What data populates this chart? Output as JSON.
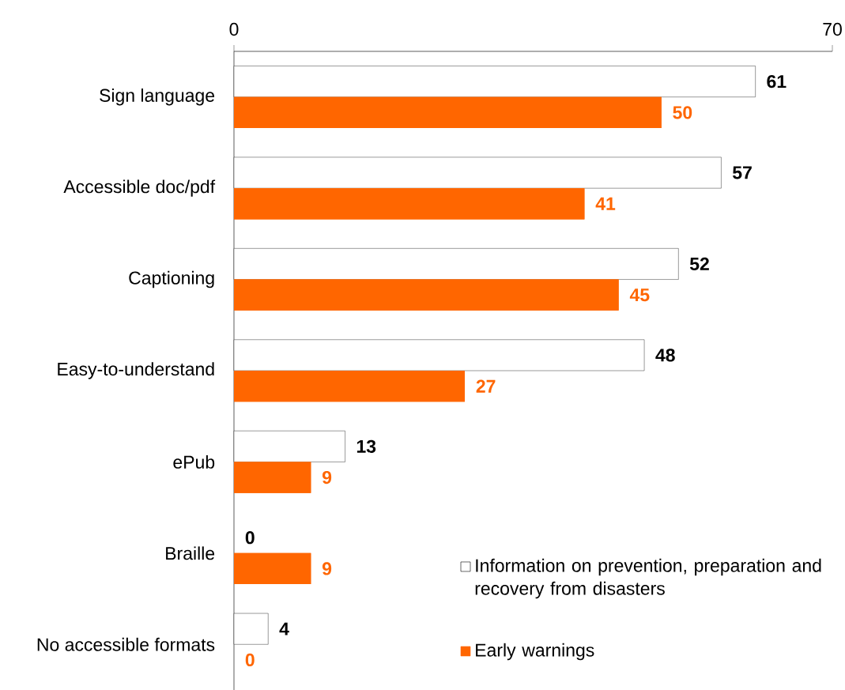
{
  "chart_data": {
    "type": "bar",
    "orientation": "horizontal",
    "categories": [
      "Sign language",
      "Accessible doc/pdf",
      "Captioning",
      "Easy-to-understand",
      "ePub",
      "Braille",
      "No accessible formats"
    ],
    "series": [
      {
        "name": "Information on prevention, preparation and recovery from disasters",
        "color": "#ffffff",
        "values": [
          61,
          57,
          52,
          48,
          13,
          0,
          4
        ]
      },
      {
        "name": "Early warnings",
        "color": "#ff6600",
        "values": [
          50,
          41,
          45,
          27,
          9,
          9,
          0
        ]
      }
    ],
    "xlim": [
      0,
      70
    ],
    "xticks": [
      0,
      70
    ],
    "data_labels": true,
    "legend": "bottom right",
    "grid": false
  }
}
